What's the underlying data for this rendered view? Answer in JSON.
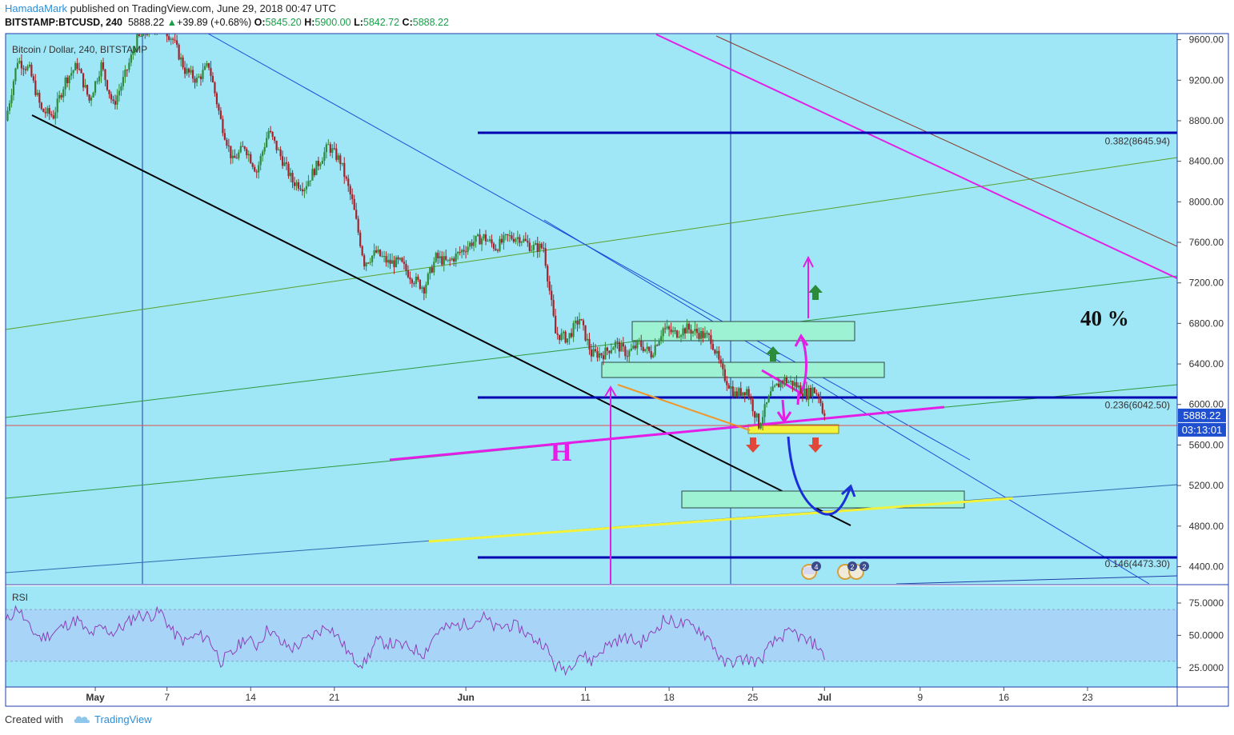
{
  "header": {
    "author": "HamadaMark",
    "published": "published on TradingView.com, June 29, 2018 00:47 UTC",
    "symbol": "BITSTAMP:BTCUSD, 240",
    "last": "5888.22",
    "change_arrow": "▲",
    "change": "+39.89 (+0.68%)",
    "o_label": "O:",
    "o": "5845.20",
    "h_label": "H:",
    "h": "5900.00",
    "l_label": "L:",
    "l": "5842.72",
    "c_label": "C:",
    "c": "5888.22"
  },
  "pane_title": "Bitcoin / Dollar, 240, BITSTAMP",
  "rsi_label": "RSI",
  "price_tag": "5888.22",
  "time_tag": "03:13:01",
  "annotations": {
    "percent": "40 %",
    "h_letter": "H",
    "event1": "4",
    "event2": "2",
    "event3": "2"
  },
  "fib_labels": [
    {
      "text": "0.382(8645.94)",
      "value": 8645.94
    },
    {
      "text": "0.236(6042.50)",
      "value": 6042.5
    },
    {
      "text": "0.146(4473.30)",
      "value": 4473.3
    }
  ],
  "footer": {
    "created": "Created with",
    "brand": "TradingView"
  },
  "colors": {
    "background": "#9fe6f7",
    "candle_up": "#2d8c3a",
    "candle_down": "#a3232c",
    "fib_line": "#0000b0",
    "magenta": "#e41ee6",
    "yellow": "#f2f23a",
    "box": "#9df2d4",
    "rsi": "#8c3fb8",
    "rsi_band": "#a9d1f7",
    "price_tag": "#1f4fd1"
  },
  "chart_data": [
    {
      "type": "candlestick",
      "title": "Bitcoin / Dollar, 240, BITSTAMP",
      "y_ticks": [
        9600,
        9200,
        8800,
        8400,
        8000,
        7600,
        7200,
        6800,
        6400,
        6000,
        5600,
        5200,
        4800,
        4400
      ],
      "y_tick_labels": [
        "9600.00",
        "9200.00",
        "8800.00",
        "8400.00",
        "8000.00",
        "7600.00",
        "7200.00",
        "6800.00",
        "6400.00",
        "6000.00",
        "5600.00",
        "5200.00",
        "4800.00",
        "4400.00"
      ],
      "ylim": [
        4230,
        9660
      ],
      "x_tick_labels": [
        "May",
        "7",
        "14",
        "21",
        "Jun",
        "11",
        "18",
        "25",
        "Jul",
        "9",
        "16",
        "23"
      ],
      "x_tick_days": [
        3,
        9,
        16,
        23,
        34,
        44,
        51,
        58,
        64,
        72,
        79,
        86
      ],
      "xlim_days": [
        -4.5,
        93.5
      ],
      "last_price": 5888.22,
      "close_path": [
        [
          -4.5,
          8800
        ],
        [
          -3.5,
          9400
        ],
        [
          -2.5,
          9300
        ],
        [
          -1.5,
          8900
        ],
        [
          -0.5,
          8850
        ],
        [
          0.5,
          9200
        ],
        [
          1.5,
          9350
        ],
        [
          2.5,
          9000
        ],
        [
          3.5,
          9350
        ],
        [
          4.5,
          8950
        ],
        [
          5.5,
          9250
        ],
        [
          6.5,
          9600
        ],
        [
          7.5,
          9700
        ],
        [
          8.5,
          9750
        ],
        [
          9.5,
          9600
        ],
        [
          10.5,
          9300
        ],
        [
          11.5,
          9200
        ],
        [
          12.5,
          9350
        ],
        [
          13.5,
          8800
        ],
        [
          14.5,
          8400
        ],
        [
          15.5,
          8550
        ],
        [
          16.5,
          8300
        ],
        [
          17.5,
          8700
        ],
        [
          18.5,
          8450
        ],
        [
          19.5,
          8200
        ],
        [
          20.5,
          8150
        ],
        [
          21.5,
          8350
        ],
        [
          22.5,
          8550
        ],
        [
          23.5,
          8400
        ],
        [
          24.5,
          8000
        ],
        [
          25.5,
          7400
        ],
        [
          26.5,
          7500
        ],
        [
          27.5,
          7400
        ],
        [
          28.5,
          7400
        ],
        [
          29.5,
          7250
        ],
        [
          30.5,
          7150
        ],
        [
          31.5,
          7450
        ],
        [
          32.5,
          7400
        ],
        [
          33.5,
          7500
        ],
        [
          34.5,
          7600
        ],
        [
          35.5,
          7650
        ],
        [
          36.5,
          7550
        ],
        [
          37.5,
          7650
        ],
        [
          38.5,
          7650
        ],
        [
          39.5,
          7550
        ],
        [
          40.5,
          7550
        ],
        [
          41.5,
          6700
        ],
        [
          42.5,
          6650
        ],
        [
          43.5,
          6850
        ],
        [
          44.5,
          6500
        ],
        [
          45.5,
          6500
        ],
        [
          46.5,
          6600
        ],
        [
          47.5,
          6500
        ],
        [
          48.5,
          6600
        ],
        [
          49.5,
          6500
        ],
        [
          50.5,
          6750
        ],
        [
          51.5,
          6700
        ],
        [
          52.5,
          6750
        ],
        [
          53.5,
          6700
        ],
        [
          54.5,
          6650
        ],
        [
          55.5,
          6300
        ],
        [
          56.5,
          6100
        ],
        [
          57.5,
          6150
        ],
        [
          58.5,
          5800
        ],
        [
          59.5,
          6100
        ],
        [
          60.5,
          6250
        ],
        [
          61.5,
          6200
        ],
        [
          62.5,
          6100
        ],
        [
          63.0,
          6150
        ],
        [
          63.5,
          6100
        ],
        [
          63.95,
          5888.22
        ]
      ]
    },
    {
      "type": "line",
      "title": "RSI",
      "y_ticks": [
        75,
        50,
        25
      ],
      "y_tick_labels": [
        "75.0000",
        "50.0000",
        "25.0000"
      ],
      "ylim": [
        10,
        88
      ],
      "band": [
        30,
        70
      ],
      "last": 31,
      "rsi_path": [
        [
          -4.5,
          60
        ],
        [
          -3.5,
          72
        ],
        [
          -2.5,
          55
        ],
        [
          -1.5,
          48
        ],
        [
          -0.5,
          52
        ],
        [
          0.5,
          58
        ],
        [
          1.5,
          62
        ],
        [
          2.5,
          50
        ],
        [
          3.5,
          56
        ],
        [
          4.5,
          52
        ],
        [
          5.5,
          58
        ],
        [
          6.5,
          66
        ],
        [
          7.5,
          65
        ],
        [
          8.5,
          68
        ],
        [
          9.5,
          52
        ],
        [
          10.5,
          45
        ],
        [
          11.5,
          50
        ],
        [
          12.5,
          48
        ],
        [
          13.5,
          30
        ],
        [
          14.5,
          36
        ],
        [
          15.5,
          48
        ],
        [
          16.5,
          42
        ],
        [
          17.5,
          56
        ],
        [
          18.5,
          44
        ],
        [
          19.5,
          40
        ],
        [
          20.5,
          45
        ],
        [
          21.5,
          52
        ],
        [
          22.5,
          58
        ],
        [
          23.5,
          46
        ],
        [
          24.5,
          32
        ],
        [
          25.5,
          28
        ],
        [
          26.5,
          45
        ],
        [
          27.5,
          44
        ],
        [
          28.5,
          42
        ],
        [
          29.5,
          40
        ],
        [
          30.5,
          36
        ],
        [
          31.5,
          52
        ],
        [
          32.5,
          56
        ],
        [
          33.5,
          58
        ],
        [
          34.5,
          60
        ],
        [
          35.5,
          64
        ],
        [
          36.5,
          55
        ],
        [
          37.5,
          58
        ],
        [
          38.5,
          56
        ],
        [
          39.5,
          48
        ],
        [
          40.5,
          44
        ],
        [
          41.5,
          26
        ],
        [
          42.5,
          24
        ],
        [
          43.5,
          36
        ],
        [
          44.5,
          30
        ],
        [
          45.5,
          40
        ],
        [
          46.5,
          46
        ],
        [
          47.5,
          48
        ],
        [
          48.5,
          44
        ],
        [
          49.5,
          50
        ],
        [
          50.5,
          62
        ],
        [
          51.5,
          60
        ],
        [
          52.5,
          58
        ],
        [
          53.5,
          55
        ],
        [
          54.5,
          46
        ],
        [
          55.5,
          28
        ],
        [
          56.5,
          30
        ],
        [
          57.5,
          32
        ],
        [
          58.5,
          29
        ],
        [
          59.5,
          42
        ],
        [
          60.5,
          50
        ],
        [
          61.5,
          52
        ],
        [
          62.5,
          45
        ],
        [
          63.0,
          44
        ],
        [
          63.5,
          42
        ],
        [
          63.95,
          31
        ]
      ]
    }
  ]
}
